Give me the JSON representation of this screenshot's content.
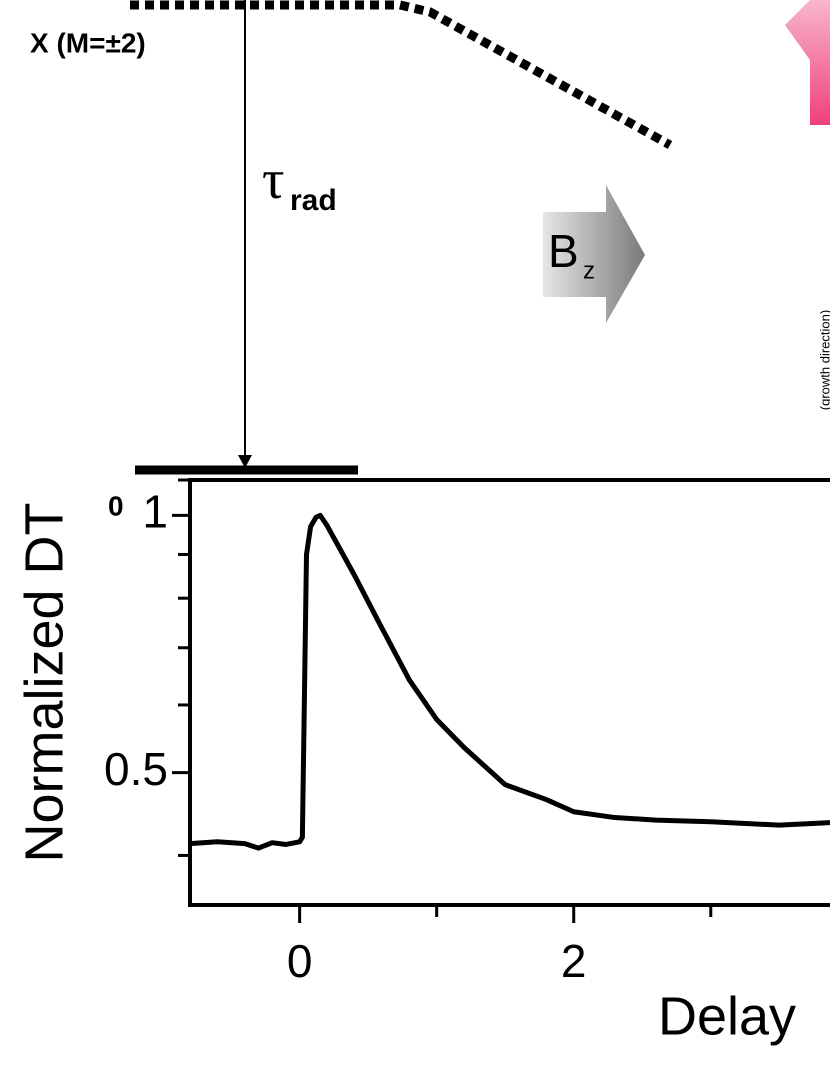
{
  "diagram": {
    "state_label": "X (M=±2)",
    "tau": "τ",
    "tau_sub": "rad",
    "field": "B",
    "field_sub": "z",
    "ground": "0",
    "side_note": "(growth direction)"
  },
  "chart_data": {
    "type": "line",
    "y_label": "Normalized DT",
    "x_label": "Delay",
    "color": "#000000",
    "log_y": true,
    "x": [
      -0.8,
      -0.6,
      -0.4,
      -0.3,
      -0.2,
      -0.1,
      0,
      0.02,
      0.05,
      0.08,
      0.12,
      0.15,
      0.2,
      0.3,
      0.4,
      0.57,
      0.8,
      1.0,
      1.2,
      1.5,
      1.8,
      2.0,
      2.3,
      2.6,
      3.0,
      3.5,
      3.87
    ],
    "values": [
      0.413,
      0.415,
      0.413,
      0.408,
      0.414,
      0.412,
      0.415,
      0.42,
      0.9,
      0.97,
      0.995,
      1.0,
      0.973,
      0.91,
      0.851,
      0.754,
      0.642,
      0.577,
      0.535,
      0.484,
      0.465,
      0.45,
      0.443,
      0.44,
      0.438,
      0.434,
      0.437
    ],
    "xlim": [
      -0.8,
      3.87
    ],
    "ylim": [
      0.35,
      1.1
    ],
    "xticks": [
      0,
      2
    ],
    "xminor_ticks": [
      1,
      3
    ],
    "yticks": [
      0.5,
      1
    ],
    "yminor_ticks": [
      0.4,
      0.6,
      0.7,
      0.8,
      0.9,
      1.1
    ]
  }
}
